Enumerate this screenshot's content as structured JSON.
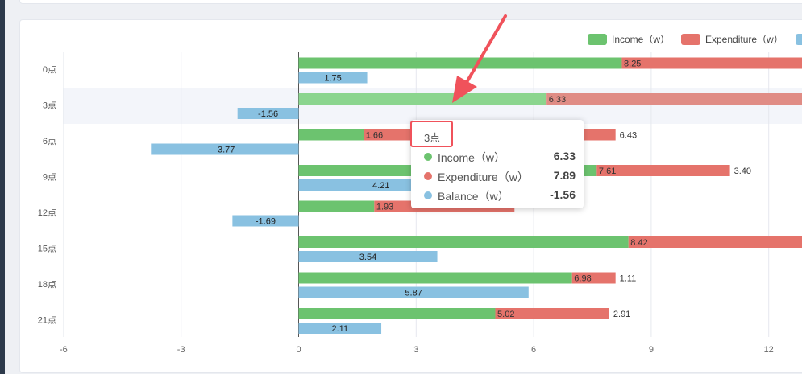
{
  "chart_data": {
    "type": "bar",
    "orientation": "horizontal",
    "categories": [
      "0点",
      "3点",
      "6点",
      "9点",
      "12点",
      "15点",
      "18点",
      "21点"
    ],
    "series": [
      {
        "name": "Income（w）",
        "color": "#6cc36f",
        "values": [
          8.25,
          6.33,
          1.66,
          7.61,
          1.93,
          8.42,
          6.98,
          5.02
        ]
      },
      {
        "name": "Expenditure（w）",
        "color": "#e5736b",
        "values": [
          null,
          7.89,
          6.43,
          3.4,
          3.58,
          null,
          1.11,
          2.91
        ]
      },
      {
        "name": "Balance（w）",
        "color": "#89c1e1",
        "values": [
          1.75,
          -1.56,
          -3.77,
          4.21,
          -1.69,
          3.54,
          5.87,
          2.11
        ]
      }
    ],
    "stacked": [
      "Income（w）",
      "Expenditure（w）"
    ],
    "data_labels": {
      "income": [
        "8.25",
        "6.33",
        "1.66",
        "7.61",
        "1.93",
        "8.42",
        "6.98",
        "5.02"
      ],
      "expenditure_right": [
        "",
        "",
        "6.43",
        "3.40",
        "",
        "",
        "1.11",
        "2.91"
      ],
      "balance": [
        "1.75",
        "-1.56",
        "-3.77",
        "4.21",
        "-1.69",
        "3.54",
        "5.87",
        "2.11"
      ]
    },
    "x_ticks": [
      "-6",
      "-3",
      "0",
      "3",
      "6",
      "9",
      "12"
    ],
    "xlim": [
      -6,
      12.9
    ],
    "legend_position": "top-right",
    "grid": true,
    "highlight_category": "3点"
  },
  "tooltip": {
    "title": "3点",
    "rows": [
      {
        "name": "Income（w）",
        "value": "6.33",
        "color": "#6cc36f"
      },
      {
        "name": "Expenditure（w）",
        "value": "7.89",
        "color": "#e5736b"
      },
      {
        "name": "Balance（w）",
        "value": "-1.56",
        "color": "#89c1e1"
      }
    ]
  },
  "annotation": {
    "color": "#f0525b"
  }
}
